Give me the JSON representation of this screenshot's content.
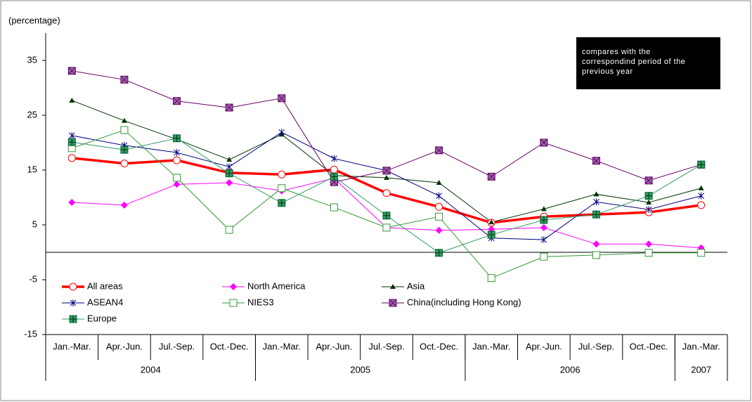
{
  "chart_data": {
    "type": "line",
    "y_label": "(percentage)",
    "annotation": [
      "compares with the",
      "correspondind period of the",
      "previous year"
    ],
    "categories": [
      "Jan.-Mar.",
      "Apr.-Jun.",
      "Jul.-Sep.",
      "Oct.-Dec.",
      "Jan.-Mar.",
      "Apr.-Jun.",
      "Jul.-Sep.",
      "Oct.-Dec.",
      "Jan.-Mar.",
      "Apr.-Jun.",
      "Jul.-Sep.",
      "Oct.-Dec.",
      "Jan.-Mar."
    ],
    "year_groups": [
      {
        "label": "2004",
        "count": 4
      },
      {
        "label": "2005",
        "count": 4
      },
      {
        "label": "2006",
        "count": 4
      },
      {
        "label": "2007",
        "count": 1
      }
    ],
    "ylim": [
      -15,
      40
    ],
    "yticks": [
      35,
      25,
      15,
      5,
      -5,
      -15
    ],
    "series": [
      {
        "name": "All areas",
        "color": "#ff0000",
        "marker": "circle-open",
        "width": 3.5,
        "values": [
          17.2,
          16.2,
          16.8,
          14.5,
          14.2,
          15.1,
          10.8,
          8.3,
          5.4,
          6.5,
          6.9,
          7.3,
          8.6
        ]
      },
      {
        "name": "North America",
        "color": "#ff00ff",
        "marker": "diamond",
        "width": 1,
        "values": [
          9.1,
          8.6,
          12.4,
          12.7,
          11.2,
          13.5,
          4.5,
          4.0,
          4.2,
          4.5,
          1.5,
          1.5,
          0.8
        ]
      },
      {
        "name": "Asia",
        "color": "#003300",
        "marker": "triangle",
        "width": 1,
        "values": [
          27.7,
          24.0,
          20.6,
          16.9,
          21.5,
          14.0,
          13.6,
          12.7,
          5.5,
          7.9,
          10.6,
          9.1,
          11.7
        ]
      },
      {
        "name": "ASEAN4",
        "color": "#000080",
        "marker": "asterisk",
        "width": 1,
        "values": [
          21.3,
          19.5,
          18.2,
          15.6,
          21.9,
          17.1,
          14.9,
          10.3,
          2.6,
          2.3,
          9.2,
          7.8,
          10.3
        ]
      },
      {
        "name": "NIES3",
        "color": "#339933",
        "marker": "square-open",
        "width": 1,
        "values": [
          19.0,
          22.3,
          13.6,
          4.1,
          11.7,
          8.2,
          4.5,
          6.5,
          -4.7,
          -0.8,
          -0.5,
          -0.1,
          -0.1
        ]
      },
      {
        "name": "China(including Hong Kong)",
        "color": "#660066",
        "marker": "square-x",
        "width": 1,
        "values": [
          33.1,
          31.5,
          27.6,
          26.4,
          28.1,
          12.8,
          14.9,
          18.6,
          13.8,
          20.0,
          16.7,
          13.1,
          16.0
        ]
      },
      {
        "name": "Europe",
        "color": "#339966",
        "marker": "square-plus",
        "width": 1,
        "values": [
          20.1,
          18.7,
          20.8,
          14.4,
          9.0,
          13.8,
          6.7,
          -0.1,
          3.2,
          5.9,
          6.9,
          10.3,
          16.0
        ]
      }
    ]
  }
}
